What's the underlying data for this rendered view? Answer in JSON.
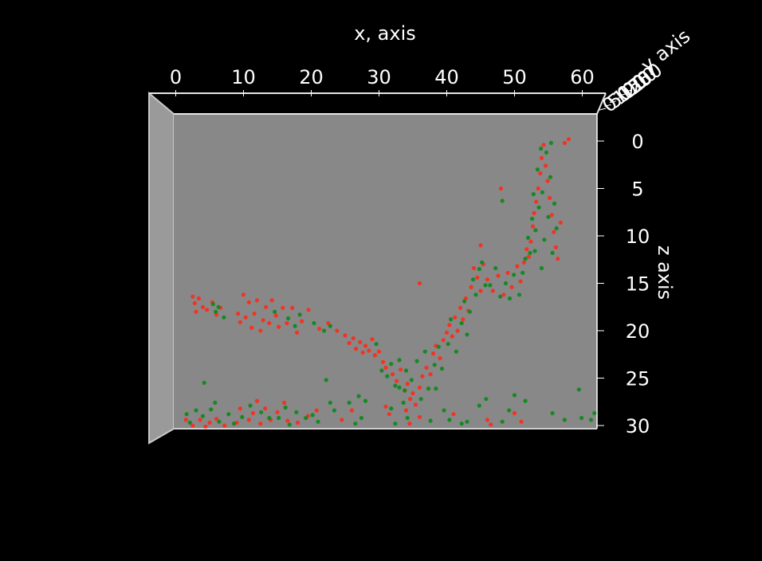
{
  "chart_data": {
    "type": "scatter",
    "projection": "3d",
    "view": "front (x-z plane, y axis foreshortened)",
    "background": "#000000",
    "pane_color": "#888888",
    "grid": false,
    "xlabel": "x, axis",
    "ylabel": "y axis",
    "zlabel": "z axis",
    "xlim": [
      -5,
      62
    ],
    "zlim": [
      31,
      -2
    ],
    "z_inverted": true,
    "x_ticks": [
      "0",
      "10",
      "20",
      "30",
      "40",
      "50",
      "60"
    ],
    "z_ticks": [
      "0",
      "5",
      "10",
      "15",
      "20",
      "25",
      "30"
    ],
    "y_ticks": [
      "0",
      "50",
      "100",
      "150",
      "200",
      "250"
    ],
    "series": [
      {
        "color": "#ff2a1a",
        "points": [
          [
            2.5,
            16.4
          ],
          [
            2.8,
            17.1
          ],
          [
            3.0,
            18.0
          ],
          [
            3.4,
            16.6
          ],
          [
            4.0,
            17.5
          ],
          [
            4.6,
            17.8
          ],
          [
            5.4,
            17.0
          ],
          [
            6.0,
            18.3
          ],
          [
            6.6,
            17.6
          ],
          [
            9.2,
            18.2
          ],
          [
            9.5,
            19.1
          ],
          [
            10.0,
            16.2
          ],
          [
            10.3,
            18.6
          ],
          [
            10.8,
            17.0
          ],
          [
            11.2,
            19.7
          ],
          [
            11.6,
            18.2
          ],
          [
            12.0,
            16.8
          ],
          [
            12.5,
            20.0
          ],
          [
            12.9,
            18.9
          ],
          [
            13.3,
            17.5
          ],
          [
            13.8,
            19.2
          ],
          [
            14.2,
            16.8
          ],
          [
            14.8,
            18.4
          ],
          [
            15.2,
            19.6
          ],
          [
            15.8,
            17.6
          ],
          [
            16.4,
            19.2
          ],
          [
            17.2,
            17.6
          ],
          [
            17.9,
            20.2
          ],
          [
            18.6,
            19.0
          ],
          [
            19.6,
            17.8
          ],
          [
            21.2,
            19.8
          ],
          [
            22.5,
            19.2
          ],
          [
            23.8,
            20.0
          ],
          [
            25.0,
            20.5
          ],
          [
            25.6,
            21.3
          ],
          [
            26.2,
            20.8
          ],
          [
            26.6,
            21.9
          ],
          [
            27.2,
            21.2
          ],
          [
            27.6,
            22.3
          ],
          [
            28.0,
            21.6
          ],
          [
            28.5,
            22.1
          ],
          [
            29.0,
            20.9
          ],
          [
            29.4,
            22.6
          ],
          [
            30.0,
            22.2
          ],
          [
            30.6,
            23.3
          ],
          [
            31.0,
            23.9
          ],
          [
            32.0,
            24.6
          ],
          [
            32.6,
            25.3
          ],
          [
            33.2,
            24.1
          ],
          [
            33.8,
            26.3
          ],
          [
            34.2,
            25.6
          ],
          [
            34.6,
            27.2
          ],
          [
            35.0,
            26.6
          ],
          [
            35.4,
            27.8
          ],
          [
            36.0,
            26.0
          ],
          [
            36.4,
            24.8
          ],
          [
            37.0,
            23.9
          ],
          [
            37.6,
            24.6
          ],
          [
            38.0,
            22.4
          ],
          [
            38.4,
            21.6
          ],
          [
            39.0,
            22.9
          ],
          [
            39.5,
            21.0
          ],
          [
            40.0,
            20.2
          ],
          [
            40.4,
            19.4
          ],
          [
            40.8,
            20.6
          ],
          [
            41.2,
            18.6
          ],
          [
            41.6,
            20.0
          ],
          [
            42.0,
            17.6
          ],
          [
            42.4,
            18.8
          ],
          [
            42.8,
            16.6
          ],
          [
            43.2,
            17.9
          ],
          [
            43.6,
            15.4
          ],
          [
            44.0,
            13.4
          ],
          [
            44.5,
            14.4
          ],
          [
            45.0,
            15.8
          ],
          [
            45.4,
            13.0
          ],
          [
            46.0,
            14.6
          ],
          [
            46.8,
            15.8
          ],
          [
            47.6,
            14.2
          ],
          [
            48.4,
            16.2
          ],
          [
            49.0,
            13.9
          ],
          [
            49.6,
            15.4
          ],
          [
            50.4,
            13.2
          ],
          [
            50.9,
            14.8
          ],
          [
            51.4,
            12.8
          ],
          [
            51.8,
            11.4
          ],
          [
            52.1,
            12.2
          ],
          [
            52.4,
            10.6
          ],
          [
            52.7,
            9.0
          ],
          [
            52.9,
            7.6
          ],
          [
            53.2,
            6.4
          ],
          [
            53.5,
            5.0
          ],
          [
            53.8,
            3.4
          ],
          [
            54.0,
            1.8
          ],
          [
            54.3,
            0.4
          ],
          [
            54.6,
            2.6
          ],
          [
            54.9,
            4.2
          ],
          [
            55.2,
            6.0
          ],
          [
            55.5,
            7.8
          ],
          [
            55.8,
            9.6
          ],
          [
            56.1,
            11.2
          ],
          [
            56.4,
            12.4
          ],
          [
            56.8,
            8.6
          ],
          [
            57.4,
            0.2
          ],
          [
            58.0,
            -0.2
          ],
          [
            48.0,
            5.0
          ],
          [
            45.0,
            11.0
          ],
          [
            36.0,
            15.0
          ],
          [
            1.5,
            29.4
          ],
          [
            2.5,
            30.0
          ],
          [
            3.6,
            29.4
          ],
          [
            4.4,
            30.1
          ],
          [
            5.0,
            29.7
          ],
          [
            6.0,
            29.3
          ],
          [
            7.2,
            30.0
          ],
          [
            9.0,
            29.7
          ],
          [
            9.5,
            28.2
          ],
          [
            10.8,
            29.4
          ],
          [
            11.4,
            28.7
          ],
          [
            12.0,
            27.4
          ],
          [
            12.5,
            29.8
          ],
          [
            13.2,
            28.2
          ],
          [
            14.0,
            29.4
          ],
          [
            15.0,
            28.6
          ],
          [
            16.0,
            27.6
          ],
          [
            16.5,
            29.5
          ],
          [
            18.0,
            29.7
          ],
          [
            19.5,
            29.0
          ],
          [
            20.8,
            28.4
          ],
          [
            24.5,
            29.4
          ],
          [
            26.0,
            28.4
          ],
          [
            31.0,
            28.0
          ],
          [
            31.5,
            28.8
          ],
          [
            34.0,
            28.4
          ],
          [
            34.5,
            29.8
          ],
          [
            36.0,
            29.1
          ],
          [
            41.0,
            28.8
          ],
          [
            46.0,
            29.4
          ],
          [
            46.5,
            29.9
          ],
          [
            50.0,
            28.7
          ],
          [
            51.0,
            29.6
          ]
        ]
      },
      {
        "color": "#0a8a1a",
        "points": [
          [
            5.5,
            17.2
          ],
          [
            5.9,
            18.0
          ],
          [
            6.3,
            17.5
          ],
          [
            7.1,
            18.6
          ],
          [
            14.6,
            18.0
          ],
          [
            16.6,
            18.7
          ],
          [
            17.6,
            19.5
          ],
          [
            18.3,
            18.3
          ],
          [
            20.4,
            19.2
          ],
          [
            21.9,
            20.0
          ],
          [
            22.8,
            19.5
          ],
          [
            29.6,
            21.4
          ],
          [
            30.4,
            24.2
          ],
          [
            31.2,
            24.8
          ],
          [
            31.8,
            23.5
          ],
          [
            32.4,
            25.8
          ],
          [
            33.0,
            23.1
          ],
          [
            33.6,
            27.6
          ],
          [
            34.0,
            24.2
          ],
          [
            34.8,
            25.2
          ],
          [
            35.6,
            23.2
          ],
          [
            36.2,
            27.2
          ],
          [
            36.8,
            22.2
          ],
          [
            37.3,
            26.1
          ],
          [
            38.2,
            23.6
          ],
          [
            38.8,
            21.7
          ],
          [
            39.3,
            24.0
          ],
          [
            40.2,
            21.4
          ],
          [
            40.6,
            18.8
          ],
          [
            41.4,
            22.2
          ],
          [
            42.2,
            19.2
          ],
          [
            42.6,
            16.9
          ],
          [
            43.0,
            20.4
          ],
          [
            43.4,
            18.0
          ],
          [
            43.9,
            14.6
          ],
          [
            44.3,
            16.2
          ],
          [
            44.8,
            13.5
          ],
          [
            45.2,
            12.8
          ],
          [
            45.7,
            15.2
          ],
          [
            46.4,
            15.2
          ],
          [
            47.2,
            13.4
          ],
          [
            47.9,
            16.4
          ],
          [
            48.7,
            15.0
          ],
          [
            49.3,
            16.6
          ],
          [
            49.9,
            14.1
          ],
          [
            50.7,
            16.2
          ],
          [
            51.2,
            13.9
          ],
          [
            51.6,
            12.4
          ],
          [
            52.0,
            10.2
          ],
          [
            52.3,
            11.8
          ],
          [
            52.6,
            8.2
          ],
          [
            52.8,
            5.6
          ],
          [
            53.1,
            9.4
          ],
          [
            53.4,
            3.0
          ],
          [
            53.6,
            7.0
          ],
          [
            53.9,
            0.8
          ],
          [
            54.1,
            5.4
          ],
          [
            54.4,
            10.4
          ],
          [
            54.7,
            1.2
          ],
          [
            55.0,
            8.0
          ],
          [
            55.3,
            3.8
          ],
          [
            55.6,
            11.8
          ],
          [
            55.9,
            6.6
          ],
          [
            56.2,
            9.2
          ],
          [
            53.0,
            11.6
          ],
          [
            54.0,
            13.4
          ],
          [
            55.4,
            0.2
          ],
          [
            48.2,
            6.3
          ],
          [
            1.6,
            28.8
          ],
          [
            2.1,
            29.7
          ],
          [
            3.0,
            28.4
          ],
          [
            4.0,
            29.0
          ],
          [
            5.2,
            28.3
          ],
          [
            5.8,
            27.6
          ],
          [
            6.4,
            29.6
          ],
          [
            7.8,
            28.8
          ],
          [
            8.6,
            29.8
          ],
          [
            9.8,
            29.1
          ],
          [
            11.0,
            27.9
          ],
          [
            12.6,
            28.6
          ],
          [
            13.8,
            29.2
          ],
          [
            15.2,
            29.2
          ],
          [
            16.2,
            28.1
          ],
          [
            16.8,
            29.9
          ],
          [
            17.8,
            28.6
          ],
          [
            19.2,
            29.2
          ],
          [
            20.2,
            28.9
          ],
          [
            21.0,
            29.6
          ],
          [
            22.2,
            25.2
          ],
          [
            22.8,
            27.6
          ],
          [
            23.4,
            28.4
          ],
          [
            25.6,
            27.6
          ],
          [
            26.5,
            29.8
          ],
          [
            27.4,
            29.2
          ],
          [
            28.0,
            27.4
          ],
          [
            31.8,
            28.2
          ],
          [
            32.4,
            29.8
          ],
          [
            33.0,
            26.0
          ],
          [
            34.2,
            29.2
          ],
          [
            37.6,
            29.5
          ],
          [
            38.4,
            26.1
          ],
          [
            39.6,
            28.4
          ],
          [
            40.4,
            29.4
          ],
          [
            42.2,
            29.8
          ],
          [
            43.0,
            29.6
          ],
          [
            44.8,
            27.9
          ],
          [
            45.8,
            27.2
          ],
          [
            48.2,
            29.6
          ],
          [
            49.2,
            28.4
          ],
          [
            50.0,
            26.8
          ],
          [
            51.6,
            27.4
          ],
          [
            55.6,
            28.7
          ],
          [
            57.4,
            29.4
          ],
          [
            59.5,
            26.2
          ],
          [
            59.9,
            29.2
          ],
          [
            61.3,
            29.4
          ],
          [
            61.8,
            28.7
          ],
          [
            4.2,
            25.5
          ],
          [
            27.0,
            26.9
          ],
          [
            33.8,
            26.3
          ]
        ]
      }
    ]
  }
}
